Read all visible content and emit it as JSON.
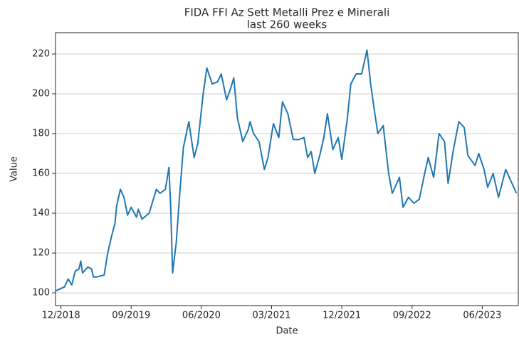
{
  "chart_data": {
    "type": "line",
    "title": "FIDA FFI Az Sett Metalli Prez e Minerali",
    "subtitle": "last 260 weeks",
    "x_label": "Date",
    "y_label": "Value",
    "xlim": [
      -3,
      254
    ],
    "ylim": [
      93.6,
      230.7
    ],
    "xticks": [
      {
        "value": 0,
        "label": "12/2018"
      },
      {
        "value": 39,
        "label": "09/2019"
      },
      {
        "value": 78,
        "label": "06/2020"
      },
      {
        "value": 117,
        "label": "03/2021"
      },
      {
        "value": 156,
        "label": "12/2021"
      },
      {
        "value": 195,
        "label": "09/2022"
      },
      {
        "value": 234,
        "label": "06/2023"
      }
    ],
    "yticks": [
      100,
      120,
      140,
      160,
      180,
      200,
      220
    ],
    "grid": true,
    "series": [
      {
        "name": "Value",
        "color": "#1f77b4",
        "x": [
          -3,
          2,
          4,
          6,
          8,
          10,
          11,
          12,
          15,
          17,
          18,
          20,
          24,
          26,
          28,
          30,
          31,
          33,
          35,
          37,
          39,
          42,
          43,
          45,
          49,
          51,
          53,
          55,
          58,
          60,
          61,
          62,
          64,
          66,
          68,
          71,
          74,
          76,
          79,
          81,
          84,
          87,
          89,
          92,
          94,
          96,
          98,
          101,
          104,
          105,
          107,
          110,
          113,
          115,
          118,
          121,
          123,
          126,
          129,
          132,
          135,
          137,
          139,
          141,
          144,
          146,
          148,
          151,
          154,
          156,
          159,
          161,
          164,
          167,
          170,
          172,
          174,
          176,
          179,
          182,
          184,
          188,
          190,
          193,
          196,
          199,
          202,
          204,
          207,
          210,
          213,
          215,
          218,
          221,
          224,
          226,
          230,
          232,
          235,
          237,
          240,
          243,
          247,
          250,
          253
        ],
        "values": [
          101,
          103,
          107,
          104,
          111,
          112,
          116,
          110,
          113,
          112,
          108,
          108,
          109,
          120,
          128,
          135,
          144,
          152,
          148,
          139,
          143,
          138,
          142,
          137,
          140,
          146,
          152,
          150,
          152,
          163,
          142,
          110,
          125,
          150,
          173,
          186,
          168,
          175,
          200,
          213,
          205,
          206,
          210,
          197,
          202,
          208,
          188,
          176,
          182,
          186,
          180,
          176,
          162,
          168,
          185,
          178,
          196,
          190,
          177,
          177,
          178,
          168,
          171,
          160,
          170,
          178,
          190,
          172,
          178,
          167,
          187,
          205,
          210,
          210,
          222,
          205,
          192,
          180,
          184,
          160,
          150,
          158,
          143,
          148,
          145,
          147,
          160,
          168,
          158,
          180,
          176,
          155,
          172,
          186,
          183,
          169,
          164,
          170,
          162,
          153,
          160,
          148,
          162,
          156,
          150
        ]
      }
    ]
  }
}
